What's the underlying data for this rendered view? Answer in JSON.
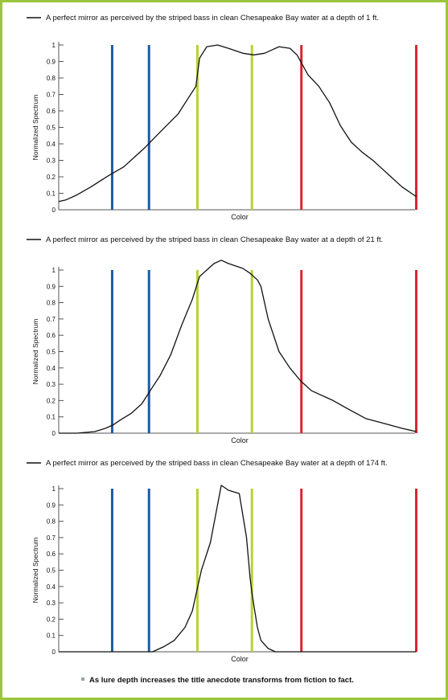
{
  "caption": "As lure depth increases the title anecdote transforms from fiction to fact.",
  "colors": {
    "frame": "#9bc53d",
    "blue": "#1f5aa6",
    "green": "#b5d334",
    "red": "#d8262f",
    "curve": "#111111",
    "caption_bullet": "#9aa3ad"
  },
  "chart_data": [
    {
      "type": "line",
      "legend": "A perfect mirror as perceived by the striped bass in clean Chesapeake Bay water at a depth of 1 ft.",
      "xlabel": "Color",
      "ylabel": "Normalized Spectrum",
      "ylim": [
        0,
        1
      ],
      "yticks": [
        "0",
        "0.1",
        "0.2",
        "0.3",
        "0.4",
        "0.5",
        "0.6",
        "0.7",
        "0.8",
        "0.9",
        "1"
      ],
      "xlim": [
        0,
        1
      ],
      "reference_lines": [
        {
          "x": 0.148,
          "color": "blue"
        },
        {
          "x": 0.25,
          "color": "blue"
        },
        {
          "x": 0.384,
          "color": "green"
        },
        {
          "x": 0.535,
          "color": "green"
        },
        {
          "x": 0.672,
          "color": "red"
        },
        {
          "x": 0.99,
          "color": "red"
        }
      ],
      "series": [
        {
          "x": [
            0,
            0.02,
            0.05,
            0.09,
            0.14,
            0.18,
            0.21,
            0.24,
            0.28,
            0.33,
            0.38,
            0.39,
            0.41,
            0.44,
            0.47,
            0.51,
            0.54,
            0.57,
            0.59,
            0.61,
            0.64,
            0.66,
            0.69,
            0.72,
            0.75,
            0.78,
            0.81,
            0.84,
            0.87,
            0.89,
            0.92,
            0.95,
            0.99
          ],
          "y": [
            0.05,
            0.06,
            0.09,
            0.14,
            0.21,
            0.26,
            0.32,
            0.38,
            0.47,
            0.58,
            0.75,
            0.92,
            0.99,
            1.0,
            0.98,
            0.95,
            0.94,
            0.95,
            0.97,
            0.99,
            0.98,
            0.94,
            0.82,
            0.75,
            0.65,
            0.51,
            0.41,
            0.35,
            0.3,
            0.26,
            0.2,
            0.14,
            0.08
          ]
        }
      ]
    },
    {
      "type": "line",
      "legend": "A perfect mirror as perceived by the striped bass in clean Chesapeake Bay water at a depth of 21 ft.",
      "xlabel": "Color",
      "ylabel": "Normalized Spectrum",
      "ylim": [
        0,
        1
      ],
      "yticks": [
        "0",
        "0.1",
        "0.2",
        "0.3",
        "0.4",
        "0.5",
        "0.6",
        "0.7",
        "0.8",
        "0.9",
        "1"
      ],
      "xlim": [
        0,
        1
      ],
      "reference_lines": [
        {
          "x": 0.148,
          "color": "blue"
        },
        {
          "x": 0.25,
          "color": "blue"
        },
        {
          "x": 0.384,
          "color": "green"
        },
        {
          "x": 0.535,
          "color": "green"
        },
        {
          "x": 0.672,
          "color": "red"
        },
        {
          "x": 0.99,
          "color": "red"
        }
      ],
      "series": [
        {
          "x": [
            0,
            0.05,
            0.1,
            0.13,
            0.15,
            0.17,
            0.2,
            0.23,
            0.25,
            0.28,
            0.31,
            0.34,
            0.37,
            0.39,
            0.41,
            0.43,
            0.45,
            0.47,
            0.51,
            0.53,
            0.55,
            0.56,
            0.58,
            0.61,
            0.64,
            0.67,
            0.7,
            0.76,
            0.8,
            0.85,
            0.9,
            0.95,
            0.99
          ],
          "y": [
            0.0,
            0.0,
            0.01,
            0.03,
            0.05,
            0.08,
            0.12,
            0.18,
            0.25,
            0.35,
            0.48,
            0.66,
            0.82,
            0.96,
            1.0,
            1.04,
            1.06,
            1.04,
            1.01,
            0.98,
            0.94,
            0.9,
            0.7,
            0.5,
            0.4,
            0.32,
            0.26,
            0.2,
            0.15,
            0.09,
            0.06,
            0.03,
            0.01
          ]
        }
      ]
    },
    {
      "type": "line",
      "legend": "A perfect mirror as perceived by the striped bass in clean Chesapeake Bay water at a depth of 174 ft.",
      "xlabel": "Color",
      "ylabel": "Normalized Spectrum",
      "ylim": [
        0,
        1
      ],
      "yticks": [
        "0",
        "0.1",
        "0.2",
        "0.3",
        "0.4",
        "0.5",
        "0.6",
        "0.7",
        "0.8",
        "0.9",
        "1"
      ],
      "xlim": [
        0,
        1
      ],
      "reference_lines": [
        {
          "x": 0.148,
          "color": "blue"
        },
        {
          "x": 0.25,
          "color": "blue"
        },
        {
          "x": 0.384,
          "color": "green"
        },
        {
          "x": 0.535,
          "color": "green"
        },
        {
          "x": 0.672,
          "color": "red"
        },
        {
          "x": 0.99,
          "color": "red"
        }
      ],
      "series": [
        {
          "x": [
            0,
            0.1,
            0.2,
            0.26,
            0.29,
            0.32,
            0.35,
            0.37,
            0.38,
            0.395,
            0.42,
            0.45,
            0.47,
            0.5,
            0.52,
            0.53,
            0.535,
            0.55,
            0.56,
            0.58,
            0.6,
            0.62,
            0.7,
            0.99
          ],
          "y": [
            0.0,
            0.0,
            0.0,
            0.0,
            0.03,
            0.07,
            0.15,
            0.25,
            0.35,
            0.5,
            0.67,
            1.02,
            0.99,
            0.97,
            0.7,
            0.45,
            0.36,
            0.15,
            0.07,
            0.02,
            0.0,
            0.0,
            0.0,
            0.0
          ]
        }
      ]
    }
  ]
}
